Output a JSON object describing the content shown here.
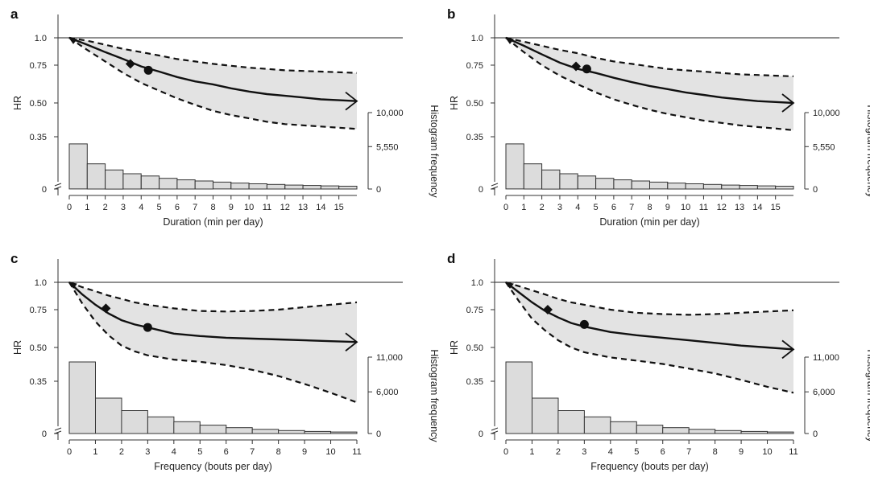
{
  "chart_data": [
    {
      "panel": "a",
      "type": "line",
      "xlabel": "Duration (min per day)",
      "ylabel": "HR",
      "y2label": "Histogram frequency",
      "x_ticks": [
        0,
        1,
        2,
        3,
        4,
        5,
        6,
        7,
        8,
        9,
        10,
        11,
        12,
        13,
        14,
        15
      ],
      "xlim": [
        0,
        16
      ],
      "y_ticks": [
        "1.0",
        "0.75",
        "0.50",
        "0.35",
        "0"
      ],
      "y2_ticks": [
        "10,000",
        "5,550",
        "0"
      ],
      "hr_curve": {
        "x": [
          0,
          1,
          2,
          3,
          4,
          5,
          6,
          7,
          8,
          9,
          10,
          11,
          12,
          13,
          14,
          15,
          16
        ],
        "y": [
          1.0,
          0.93,
          0.86,
          0.8,
          0.74,
          0.7,
          0.66,
          0.63,
          0.61,
          0.585,
          0.565,
          0.55,
          0.54,
          0.53,
          0.52,
          0.515,
          0.51
        ]
      },
      "ci_upper": {
        "x": [
          0,
          1,
          2,
          3,
          4,
          5,
          6,
          7,
          8,
          9,
          10,
          11,
          12,
          13,
          14,
          15,
          16
        ],
        "y": [
          1.0,
          0.97,
          0.93,
          0.89,
          0.86,
          0.83,
          0.8,
          0.78,
          0.76,
          0.745,
          0.73,
          0.72,
          0.71,
          0.705,
          0.7,
          0.695,
          0.69
        ]
      },
      "ci_lower": {
        "x": [
          0,
          1,
          2,
          3,
          4,
          5,
          6,
          7,
          8,
          9,
          10,
          11,
          12,
          13,
          14,
          15,
          16
        ],
        "y": [
          1.0,
          0.88,
          0.78,
          0.69,
          0.62,
          0.57,
          0.525,
          0.49,
          0.46,
          0.44,
          0.425,
          0.41,
          0.4,
          0.395,
          0.39,
          0.385,
          0.38
        ]
      },
      "markers": [
        {
          "shape": "diamond",
          "x": 3.4,
          "y": 0.76
        },
        {
          "shape": "circle",
          "x": 4.4,
          "y": 0.71
        }
      ],
      "histogram": {
        "bin_edges": [
          0,
          1,
          2,
          3,
          4,
          5,
          6,
          7,
          8,
          9,
          10,
          11,
          12,
          13,
          14,
          15,
          16
        ],
        "counts": [
          5900,
          3300,
          2500,
          2000,
          1700,
          1400,
          1200,
          1050,
          900,
          780,
          680,
          600,
          520,
          460,
          410,
          370
        ]
      }
    },
    {
      "panel": "b",
      "type": "line",
      "xlabel": "Duration (min per day)",
      "ylabel": "HR",
      "y2label": "Histogram frequency",
      "x_ticks": [
        0,
        1,
        2,
        3,
        4,
        5,
        6,
        7,
        8,
        9,
        10,
        11,
        12,
        13,
        14,
        15
      ],
      "xlim": [
        0,
        16
      ],
      "y_ticks": [
        "1.0",
        "0.75",
        "0.50",
        "0.35",
        "0"
      ],
      "y2_ticks": [
        "10,000",
        "5,550",
        "0"
      ],
      "hr_curve": {
        "x": [
          0,
          1,
          2,
          3,
          4,
          5,
          6,
          7,
          8,
          9,
          10,
          11,
          12,
          13,
          14,
          15,
          16
        ],
        "y": [
          1.0,
          0.92,
          0.84,
          0.77,
          0.72,
          0.69,
          0.655,
          0.625,
          0.6,
          0.58,
          0.56,
          0.545,
          0.53,
          0.52,
          0.51,
          0.505,
          0.5
        ]
      },
      "ci_upper": {
        "x": [
          0,
          1,
          2,
          3,
          4,
          5,
          6,
          7,
          8,
          9,
          10,
          11,
          12,
          13,
          14,
          15,
          16
        ],
        "y": [
          1.0,
          0.96,
          0.92,
          0.88,
          0.85,
          0.81,
          0.78,
          0.76,
          0.74,
          0.72,
          0.71,
          0.7,
          0.69,
          0.68,
          0.675,
          0.67,
          0.665
        ]
      },
      "ci_lower": {
        "x": [
          0,
          1,
          2,
          3,
          4,
          5,
          6,
          7,
          8,
          9,
          10,
          11,
          12,
          13,
          14,
          15,
          16
        ],
        "y": [
          1.0,
          0.86,
          0.75,
          0.67,
          0.61,
          0.56,
          0.52,
          0.49,
          0.465,
          0.445,
          0.43,
          0.415,
          0.405,
          0.395,
          0.388,
          0.382,
          0.375
        ]
      },
      "markers": [
        {
          "shape": "diamond",
          "x": 3.9,
          "y": 0.74
        },
        {
          "shape": "circle",
          "x": 4.5,
          "y": 0.72
        }
      ],
      "histogram": {
        "bin_edges": [
          0,
          1,
          2,
          3,
          4,
          5,
          6,
          7,
          8,
          9,
          10,
          11,
          12,
          13,
          14,
          15,
          16
        ],
        "counts": [
          5900,
          3300,
          2500,
          2000,
          1700,
          1400,
          1200,
          1050,
          900,
          780,
          680,
          600,
          520,
          460,
          410,
          370
        ]
      }
    },
    {
      "panel": "c",
      "type": "line",
      "xlabel": "Frequency (bouts per day)",
      "ylabel": "HR",
      "y2label": "Histogram frequency",
      "x_ticks": [
        0,
        1,
        2,
        3,
        4,
        5,
        6,
        7,
        8,
        9,
        10,
        11
      ],
      "xlim": [
        0,
        11
      ],
      "y_ticks": [
        "1.0",
        "0.75",
        "0.50",
        "0.35",
        "0"
      ],
      "y2_ticks": [
        "11,000",
        "6,000",
        "0"
      ],
      "hr_curve": {
        "x": [
          0,
          0.5,
          1,
          1.5,
          2,
          2.5,
          3,
          4,
          5,
          6,
          7,
          8,
          9,
          10,
          11
        ],
        "y": [
          1.0,
          0.88,
          0.79,
          0.72,
          0.67,
          0.64,
          0.62,
          0.58,
          0.565,
          0.555,
          0.55,
          0.545,
          0.54,
          0.535,
          0.53
        ]
      },
      "ci_upper": {
        "x": [
          0,
          0.5,
          1,
          1.5,
          2,
          2.5,
          3,
          4,
          5,
          6,
          7,
          8,
          9,
          10,
          11
        ],
        "y": [
          1.0,
          0.95,
          0.91,
          0.87,
          0.84,
          0.81,
          0.79,
          0.76,
          0.74,
          0.735,
          0.74,
          0.75,
          0.77,
          0.79,
          0.81
        ]
      },
      "ci_lower": {
        "x": [
          0,
          0.5,
          1,
          1.5,
          2,
          2.5,
          3,
          4,
          5,
          6,
          7,
          8,
          9,
          10,
          11
        ],
        "y": [
          1.0,
          0.8,
          0.66,
          0.57,
          0.51,
          0.48,
          0.46,
          0.44,
          0.43,
          0.415,
          0.395,
          0.37,
          0.34,
          0.31,
          0.28
        ]
      },
      "markers": [
        {
          "shape": "diamond",
          "x": 1.4,
          "y": 0.76
        },
        {
          "shape": "circle",
          "x": 3.0,
          "y": 0.62
        }
      ],
      "histogram": {
        "bin_edges": [
          0,
          1,
          2,
          3,
          4,
          5,
          6,
          7,
          8,
          9,
          10,
          11
        ],
        "counts": [
          10300,
          5100,
          3300,
          2400,
          1700,
          1200,
          850,
          600,
          430,
          300,
          220
        ]
      }
    },
    {
      "panel": "d",
      "type": "line",
      "xlabel": "Frequency (bouts per day)",
      "ylabel": "HR",
      "y2label": "Histogram frequency",
      "x_ticks": [
        0,
        1,
        2,
        3,
        4,
        5,
        6,
        7,
        8,
        9,
        10,
        11
      ],
      "xlim": [
        0,
        11
      ],
      "y_ticks": [
        "1.0",
        "0.75",
        "0.50",
        "0.35",
        "0"
      ],
      "y2_ticks": [
        "11,000",
        "6,000",
        "0"
      ],
      "hr_curve": {
        "x": [
          0,
          0.5,
          1,
          1.5,
          2,
          2.5,
          3,
          4,
          5,
          6,
          7,
          8,
          9,
          10,
          11
        ],
        "y": [
          1.0,
          0.9,
          0.81,
          0.74,
          0.69,
          0.65,
          0.625,
          0.59,
          0.57,
          0.555,
          0.54,
          0.525,
          0.51,
          0.5,
          0.49
        ]
      },
      "ci_upper": {
        "x": [
          0,
          0.5,
          1,
          1.5,
          2,
          2.5,
          3,
          4,
          5,
          6,
          7,
          8,
          9,
          10,
          11
        ],
        "y": [
          1.0,
          0.96,
          0.92,
          0.88,
          0.84,
          0.81,
          0.79,
          0.75,
          0.725,
          0.715,
          0.71,
          0.715,
          0.725,
          0.735,
          0.745
        ]
      },
      "ci_lower": {
        "x": [
          0,
          0.5,
          1,
          1.5,
          2,
          2.5,
          3,
          4,
          5,
          6,
          7,
          8,
          9,
          10,
          11
        ],
        "y": [
          1.0,
          0.82,
          0.68,
          0.6,
          0.54,
          0.5,
          0.475,
          0.45,
          0.435,
          0.42,
          0.4,
          0.38,
          0.355,
          0.33,
          0.31
        ]
      },
      "markers": [
        {
          "shape": "diamond",
          "x": 1.6,
          "y": 0.75
        },
        {
          "shape": "circle",
          "x": 3.0,
          "y": 0.64
        }
      ],
      "histogram": {
        "bin_edges": [
          0,
          1,
          2,
          3,
          4,
          5,
          6,
          7,
          8,
          9,
          10,
          11
        ],
        "counts": [
          10300,
          5100,
          3300,
          2400,
          1700,
          1200,
          850,
          600,
          430,
          300,
          220
        ]
      }
    }
  ]
}
